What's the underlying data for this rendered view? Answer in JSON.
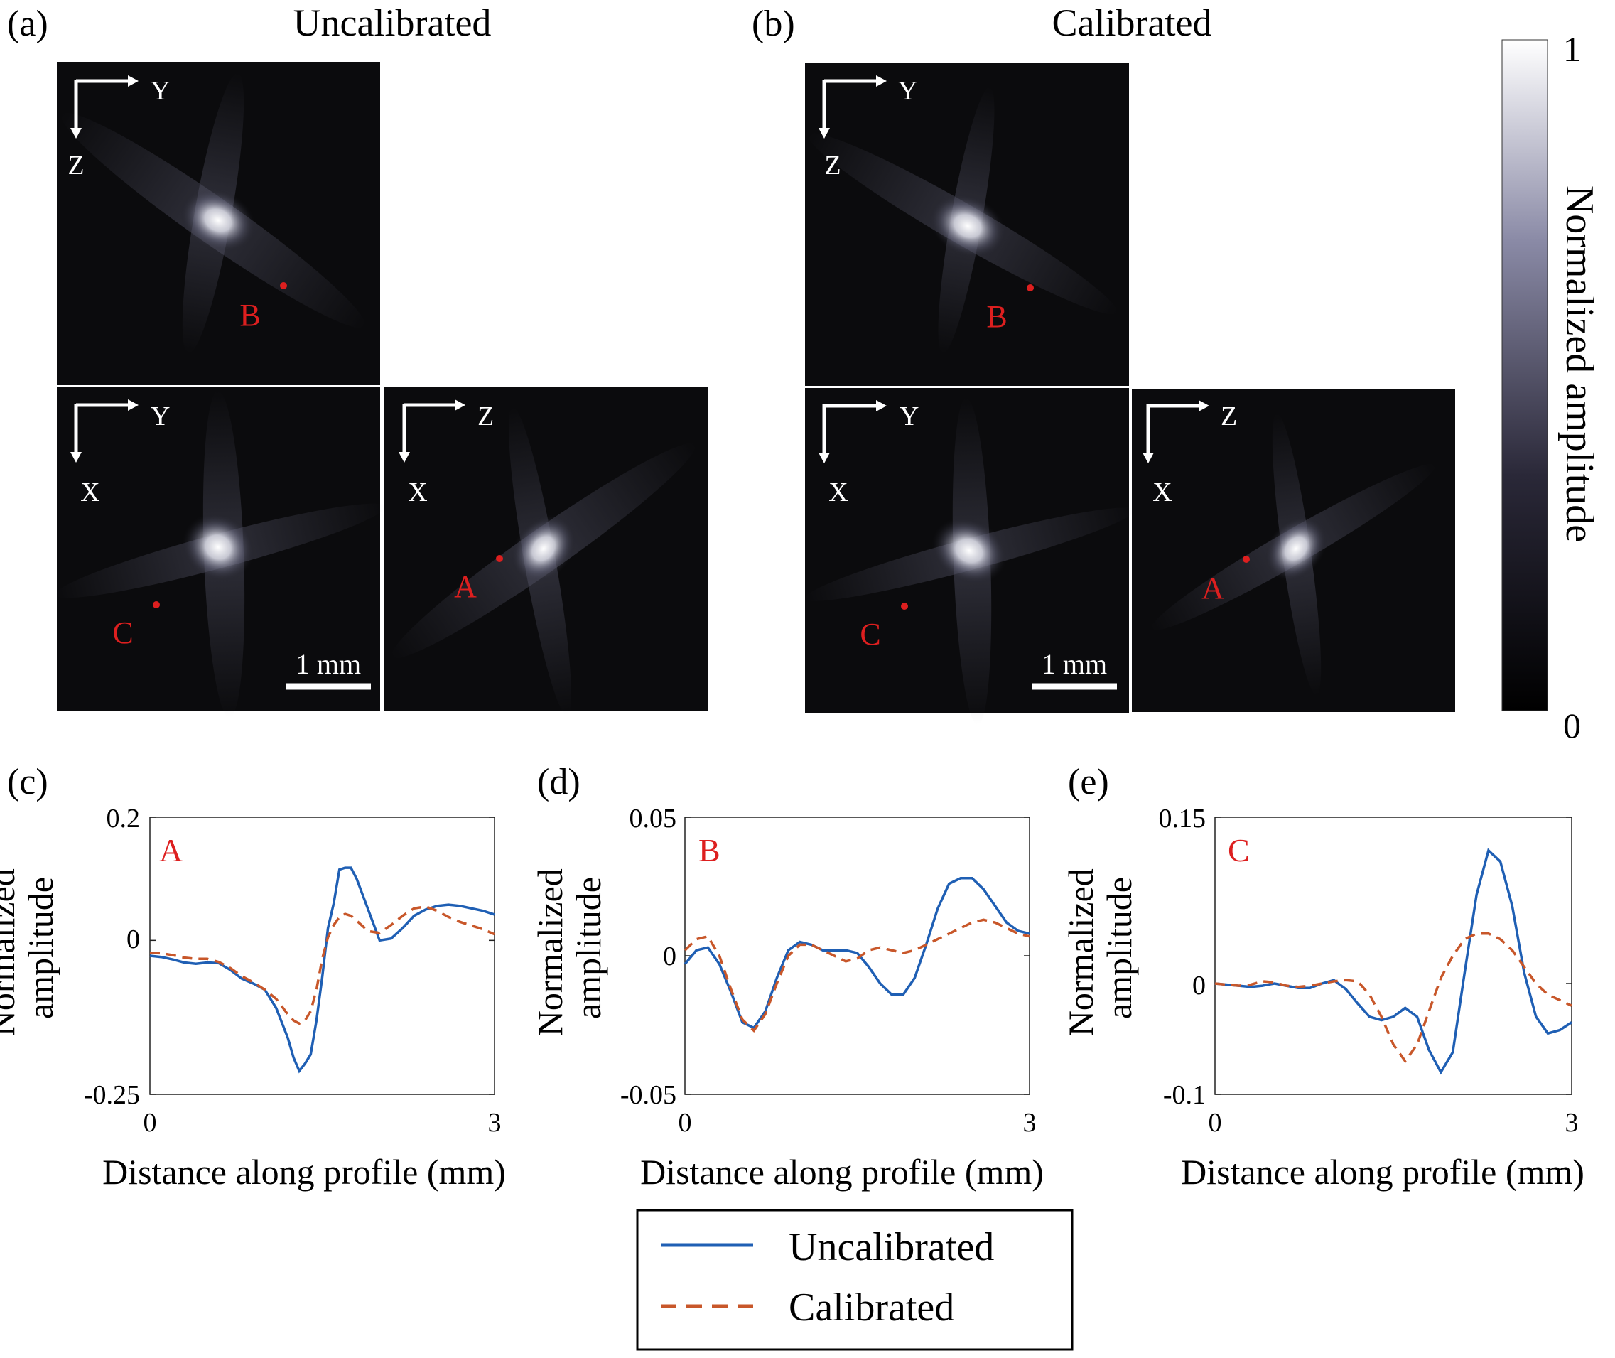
{
  "panels": {
    "a": {
      "label": "(a)",
      "title": "Uncalibrated",
      "views": [
        {
          "h_axis": "Y",
          "v_axis": "Z",
          "marker": "B"
        },
        {
          "h_axis": "Y",
          "v_axis": "X",
          "marker": "C",
          "scalebar": "1 mm"
        },
        {
          "h_axis": "Z",
          "v_axis": "X",
          "marker": "A"
        }
      ]
    },
    "b": {
      "label": "(b)",
      "title": "Calibrated",
      "views": [
        {
          "h_axis": "Y",
          "v_axis": "Z",
          "marker": "B"
        },
        {
          "h_axis": "Y",
          "v_axis": "X",
          "marker": "C",
          "scalebar": "1 mm"
        },
        {
          "h_axis": "Z",
          "v_axis": "X",
          "marker": "A"
        }
      ]
    }
  },
  "colorbar": {
    "label": "Normalized amplitude",
    "min": "0",
    "max": "1"
  },
  "legend": {
    "uncalibrated": "Uncalibrated",
    "calibrated": "Calibrated"
  },
  "colors": {
    "uncalibrated": "#1f5fb4",
    "calibrated": "#c8572a",
    "marker": "#dd1f1f"
  },
  "chart_data": [
    {
      "type": "line",
      "panel_label": "(c)",
      "annotation": "A",
      "xlabel": "Distance along profile (mm)",
      "ylabel": "Normalized amplitude",
      "xlim": [
        0,
        3
      ],
      "ylim": [
        -0.25,
        0.2
      ],
      "xticks": [
        "0",
        "3"
      ],
      "yticks": [
        "0.2",
        "0",
        "-0.25"
      ],
      "series": [
        {
          "name": "Uncalibrated",
          "x": [
            0,
            0.1,
            0.2,
            0.3,
            0.4,
            0.5,
            0.6,
            0.7,
            0.8,
            0.9,
            1.0,
            1.1,
            1.2,
            1.25,
            1.3,
            1.35,
            1.4,
            1.45,
            1.5,
            1.55,
            1.6,
            1.65,
            1.7,
            1.75,
            1.8,
            1.9,
            2.0,
            2.1,
            2.2,
            2.3,
            2.4,
            2.5,
            2.6,
            2.7,
            2.8,
            2.9,
            3.0
          ],
          "y": [
            -0.025,
            -0.027,
            -0.031,
            -0.036,
            -0.038,
            -0.036,
            -0.037,
            -0.048,
            -0.062,
            -0.07,
            -0.08,
            -0.11,
            -0.158,
            -0.19,
            -0.212,
            -0.2,
            -0.185,
            -0.13,
            -0.06,
            0.02,
            0.06,
            0.115,
            0.118,
            0.118,
            0.1,
            0.05,
            0.0,
            0.003,
            0.02,
            0.04,
            0.05,
            0.056,
            0.058,
            0.056,
            0.052,
            0.048,
            0.042
          ]
        },
        {
          "name": "Calibrated",
          "x": [
            0,
            0.1,
            0.2,
            0.3,
            0.4,
            0.5,
            0.6,
            0.7,
            0.8,
            0.9,
            1.0,
            1.1,
            1.2,
            1.25,
            1.3,
            1.35,
            1.4,
            1.45,
            1.5,
            1.55,
            1.6,
            1.65,
            1.7,
            1.75,
            1.8,
            1.9,
            2.0,
            2.1,
            2.2,
            2.3,
            2.4,
            2.5,
            2.6,
            2.7,
            2.8,
            2.9,
            3.0
          ],
          "y": [
            -0.02,
            -0.021,
            -0.024,
            -0.028,
            -0.03,
            -0.03,
            -0.035,
            -0.045,
            -0.058,
            -0.068,
            -0.08,
            -0.095,
            -0.12,
            -0.13,
            -0.135,
            -0.13,
            -0.115,
            -0.08,
            -0.03,
            0.005,
            0.025,
            0.038,
            0.043,
            0.04,
            0.032,
            0.015,
            0.012,
            0.025,
            0.04,
            0.052,
            0.055,
            0.048,
            0.038,
            0.03,
            0.024,
            0.018,
            0.01
          ]
        }
      ]
    },
    {
      "type": "line",
      "panel_label": "(d)",
      "annotation": "B",
      "xlabel": "Distance along profile (mm)",
      "ylabel": "Normalized amplitude",
      "xlim": [
        0,
        3
      ],
      "ylim": [
        -0.05,
        0.05
      ],
      "xticks": [
        "0",
        "3"
      ],
      "yticks": [
        "0.05",
        "0",
        "-0.05"
      ],
      "series": [
        {
          "name": "Uncalibrated",
          "x": [
            0,
            0.1,
            0.2,
            0.3,
            0.4,
            0.5,
            0.6,
            0.7,
            0.8,
            0.9,
            1.0,
            1.1,
            1.2,
            1.3,
            1.4,
            1.5,
            1.6,
            1.7,
            1.8,
            1.9,
            2.0,
            2.1,
            2.2,
            2.3,
            2.4,
            2.5,
            2.6,
            2.7,
            2.8,
            2.9,
            3.0
          ],
          "y": [
            -0.003,
            0.002,
            0.003,
            -0.003,
            -0.013,
            -0.024,
            -0.026,
            -0.02,
            -0.008,
            0.002,
            0.005,
            0.004,
            0.002,
            0.002,
            0.002,
            0.001,
            -0.004,
            -0.01,
            -0.014,
            -0.014,
            -0.008,
            0.004,
            0.017,
            0.026,
            0.028,
            0.028,
            0.024,
            0.018,
            0.012,
            0.009,
            0.008
          ]
        },
        {
          "name": "Calibrated",
          "x": [
            0,
            0.1,
            0.2,
            0.3,
            0.4,
            0.5,
            0.6,
            0.7,
            0.8,
            0.9,
            1.0,
            1.1,
            1.2,
            1.3,
            1.4,
            1.5,
            1.6,
            1.7,
            1.8,
            1.9,
            2.0,
            2.1,
            2.2,
            2.3,
            2.4,
            2.5,
            2.6,
            2.7,
            2.8,
            2.9,
            3.0
          ],
          "y": [
            0.002,
            0.006,
            0.007,
            0.0,
            -0.012,
            -0.023,
            -0.027,
            -0.021,
            -0.01,
            0.0,
            0.004,
            0.004,
            0.002,
            0.0,
            -0.002,
            -0.001,
            0.002,
            0.003,
            0.002,
            0.001,
            0.002,
            0.004,
            0.006,
            0.008,
            0.01,
            0.012,
            0.013,
            0.012,
            0.01,
            0.008,
            0.007
          ]
        }
      ]
    },
    {
      "type": "line",
      "panel_label": "(e)",
      "annotation": "C",
      "xlabel": "Distance along profile (mm)",
      "ylabel": "Normalized amplitude",
      "xlim": [
        0,
        3
      ],
      "ylim": [
        -0.1,
        0.15
      ],
      "xticks": [
        "0",
        "3"
      ],
      "yticks": [
        "0.15",
        "0",
        "-0.1"
      ],
      "series": [
        {
          "name": "Uncalibrated",
          "x": [
            0,
            0.1,
            0.2,
            0.3,
            0.4,
            0.5,
            0.6,
            0.7,
            0.8,
            0.9,
            1.0,
            1.1,
            1.2,
            1.3,
            1.4,
            1.5,
            1.6,
            1.7,
            1.8,
            1.9,
            2.0,
            2.1,
            2.2,
            2.3,
            2.4,
            2.5,
            2.6,
            2.7,
            2.8,
            2.9,
            3.0
          ],
          "y": [
            0.0,
            -0.001,
            -0.002,
            -0.003,
            -0.002,
            0.0,
            -0.002,
            -0.004,
            -0.004,
            0.0,
            0.003,
            -0.005,
            -0.018,
            -0.03,
            -0.033,
            -0.03,
            -0.022,
            -0.03,
            -0.06,
            -0.08,
            -0.062,
            0.01,
            0.08,
            0.12,
            0.11,
            0.07,
            0.01,
            -0.03,
            -0.045,
            -0.042,
            -0.035
          ]
        },
        {
          "name": "Calibrated",
          "x": [
            0,
            0.1,
            0.2,
            0.3,
            0.4,
            0.5,
            0.6,
            0.7,
            0.8,
            0.9,
            1.0,
            1.1,
            1.2,
            1.3,
            1.4,
            1.5,
            1.6,
            1.7,
            1.8,
            1.9,
            2.0,
            2.1,
            2.2,
            2.3,
            2.4,
            2.5,
            2.6,
            2.7,
            2.8,
            2.9,
            3.0
          ],
          "y": [
            0.0,
            -0.001,
            -0.002,
            -0.001,
            0.002,
            0.001,
            -0.002,
            -0.003,
            -0.002,
            0.0,
            0.002,
            0.003,
            0.002,
            -0.01,
            -0.03,
            -0.055,
            -0.07,
            -0.055,
            -0.025,
            0.005,
            0.025,
            0.04,
            0.045,
            0.045,
            0.04,
            0.03,
            0.015,
            0.0,
            -0.01,
            -0.015,
            -0.02
          ]
        }
      ]
    }
  ]
}
